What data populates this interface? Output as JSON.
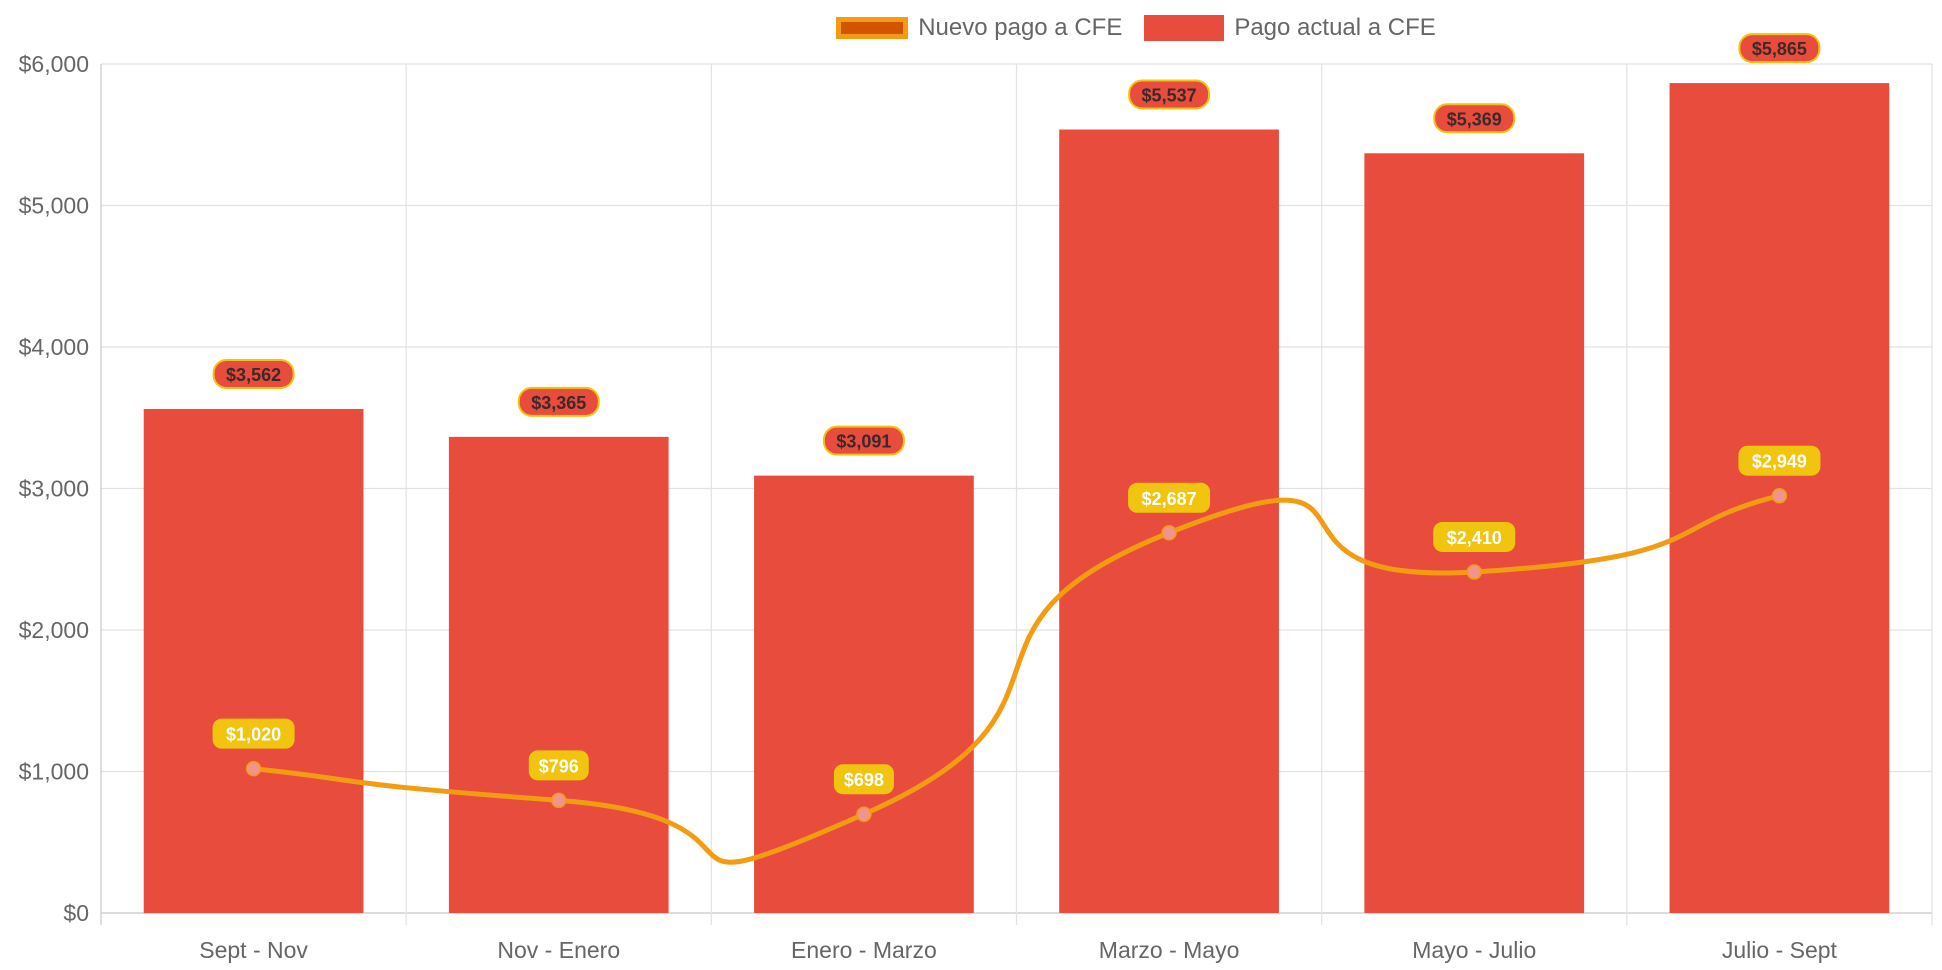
{
  "chart_data": {
    "type": "bar",
    "categories": [
      "Sept - Nov",
      "Nov - Enero",
      "Enero - Marzo",
      "Marzo - Mayo",
      "Mayo - Julio",
      "Julio - Sept"
    ],
    "series": [
      {
        "name": "Nuevo pago a CFE",
        "type": "line",
        "values": [
          1020,
          796,
          698,
          2687,
          2410,
          2949
        ],
        "labels": [
          "$1,020",
          "$796",
          "$698",
          "$2,687",
          "$2,410",
          "$2,949"
        ],
        "color": "#f39c12",
        "fill": "#d35400",
        "point_color": "#f1948a"
      },
      {
        "name": "Pago actual a CFE",
        "type": "bar",
        "values": [
          3562,
          3365,
          3091,
          5537,
          5369,
          5865
        ],
        "labels": [
          "$3,562",
          "$3,365",
          "$3,091",
          "$5,537",
          "$5,369",
          "$5,865"
        ],
        "color": "#e74c3c"
      }
    ],
    "y_ticks": [
      "$0",
      "$1,000",
      "$2,000",
      "$3,000",
      "$4,000",
      "$5,000",
      "$6,000"
    ],
    "ylim": [
      0,
      6000
    ],
    "grid": true,
    "legend": "top-center",
    "xlabel": "",
    "ylabel": "",
    "title": "",
    "label_bg_color": "#f1c40f"
  }
}
